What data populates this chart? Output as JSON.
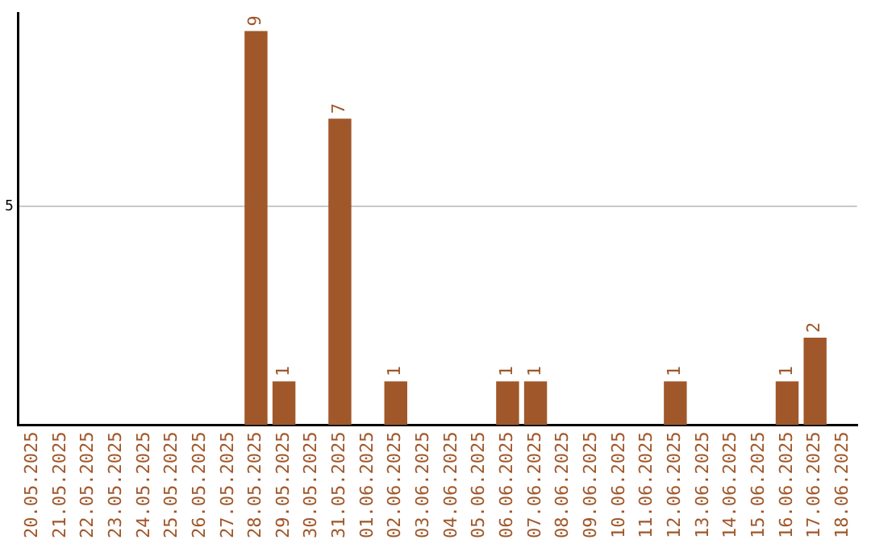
{
  "chart_data": {
    "type": "bar",
    "categories": [
      "20.05.2025",
      "21.05.2025",
      "22.05.2025",
      "23.05.2025",
      "24.05.2025",
      "25.05.2025",
      "26.05.2025",
      "27.05.2025",
      "28.05.2025",
      "29.05.2025",
      "30.05.2025",
      "31.05.2025",
      "01.06.2025",
      "02.06.2025",
      "03.06.2025",
      "04.06.2025",
      "05.06.2025",
      "06.06.2025",
      "07.06.2025",
      "08.06.2025",
      "09.06.2025",
      "10.06.2025",
      "11.06.2025",
      "12.06.2025",
      "13.06.2025",
      "14.06.2025",
      "15.06.2025",
      "16.06.2025",
      "17.06.2025",
      "18.06.2025"
    ],
    "values": [
      null,
      null,
      null,
      null,
      null,
      null,
      null,
      null,
      9,
      1,
      null,
      7,
      null,
      1,
      null,
      null,
      null,
      1,
      1,
      null,
      null,
      null,
      null,
      1,
      null,
      null,
      null,
      1,
      2,
      null
    ],
    "color": "#a0572a",
    "ylim": [
      0,
      9.4
    ],
    "yticks": [
      5
    ],
    "grid": "y",
    "data_labels": true,
    "legend": false
  }
}
